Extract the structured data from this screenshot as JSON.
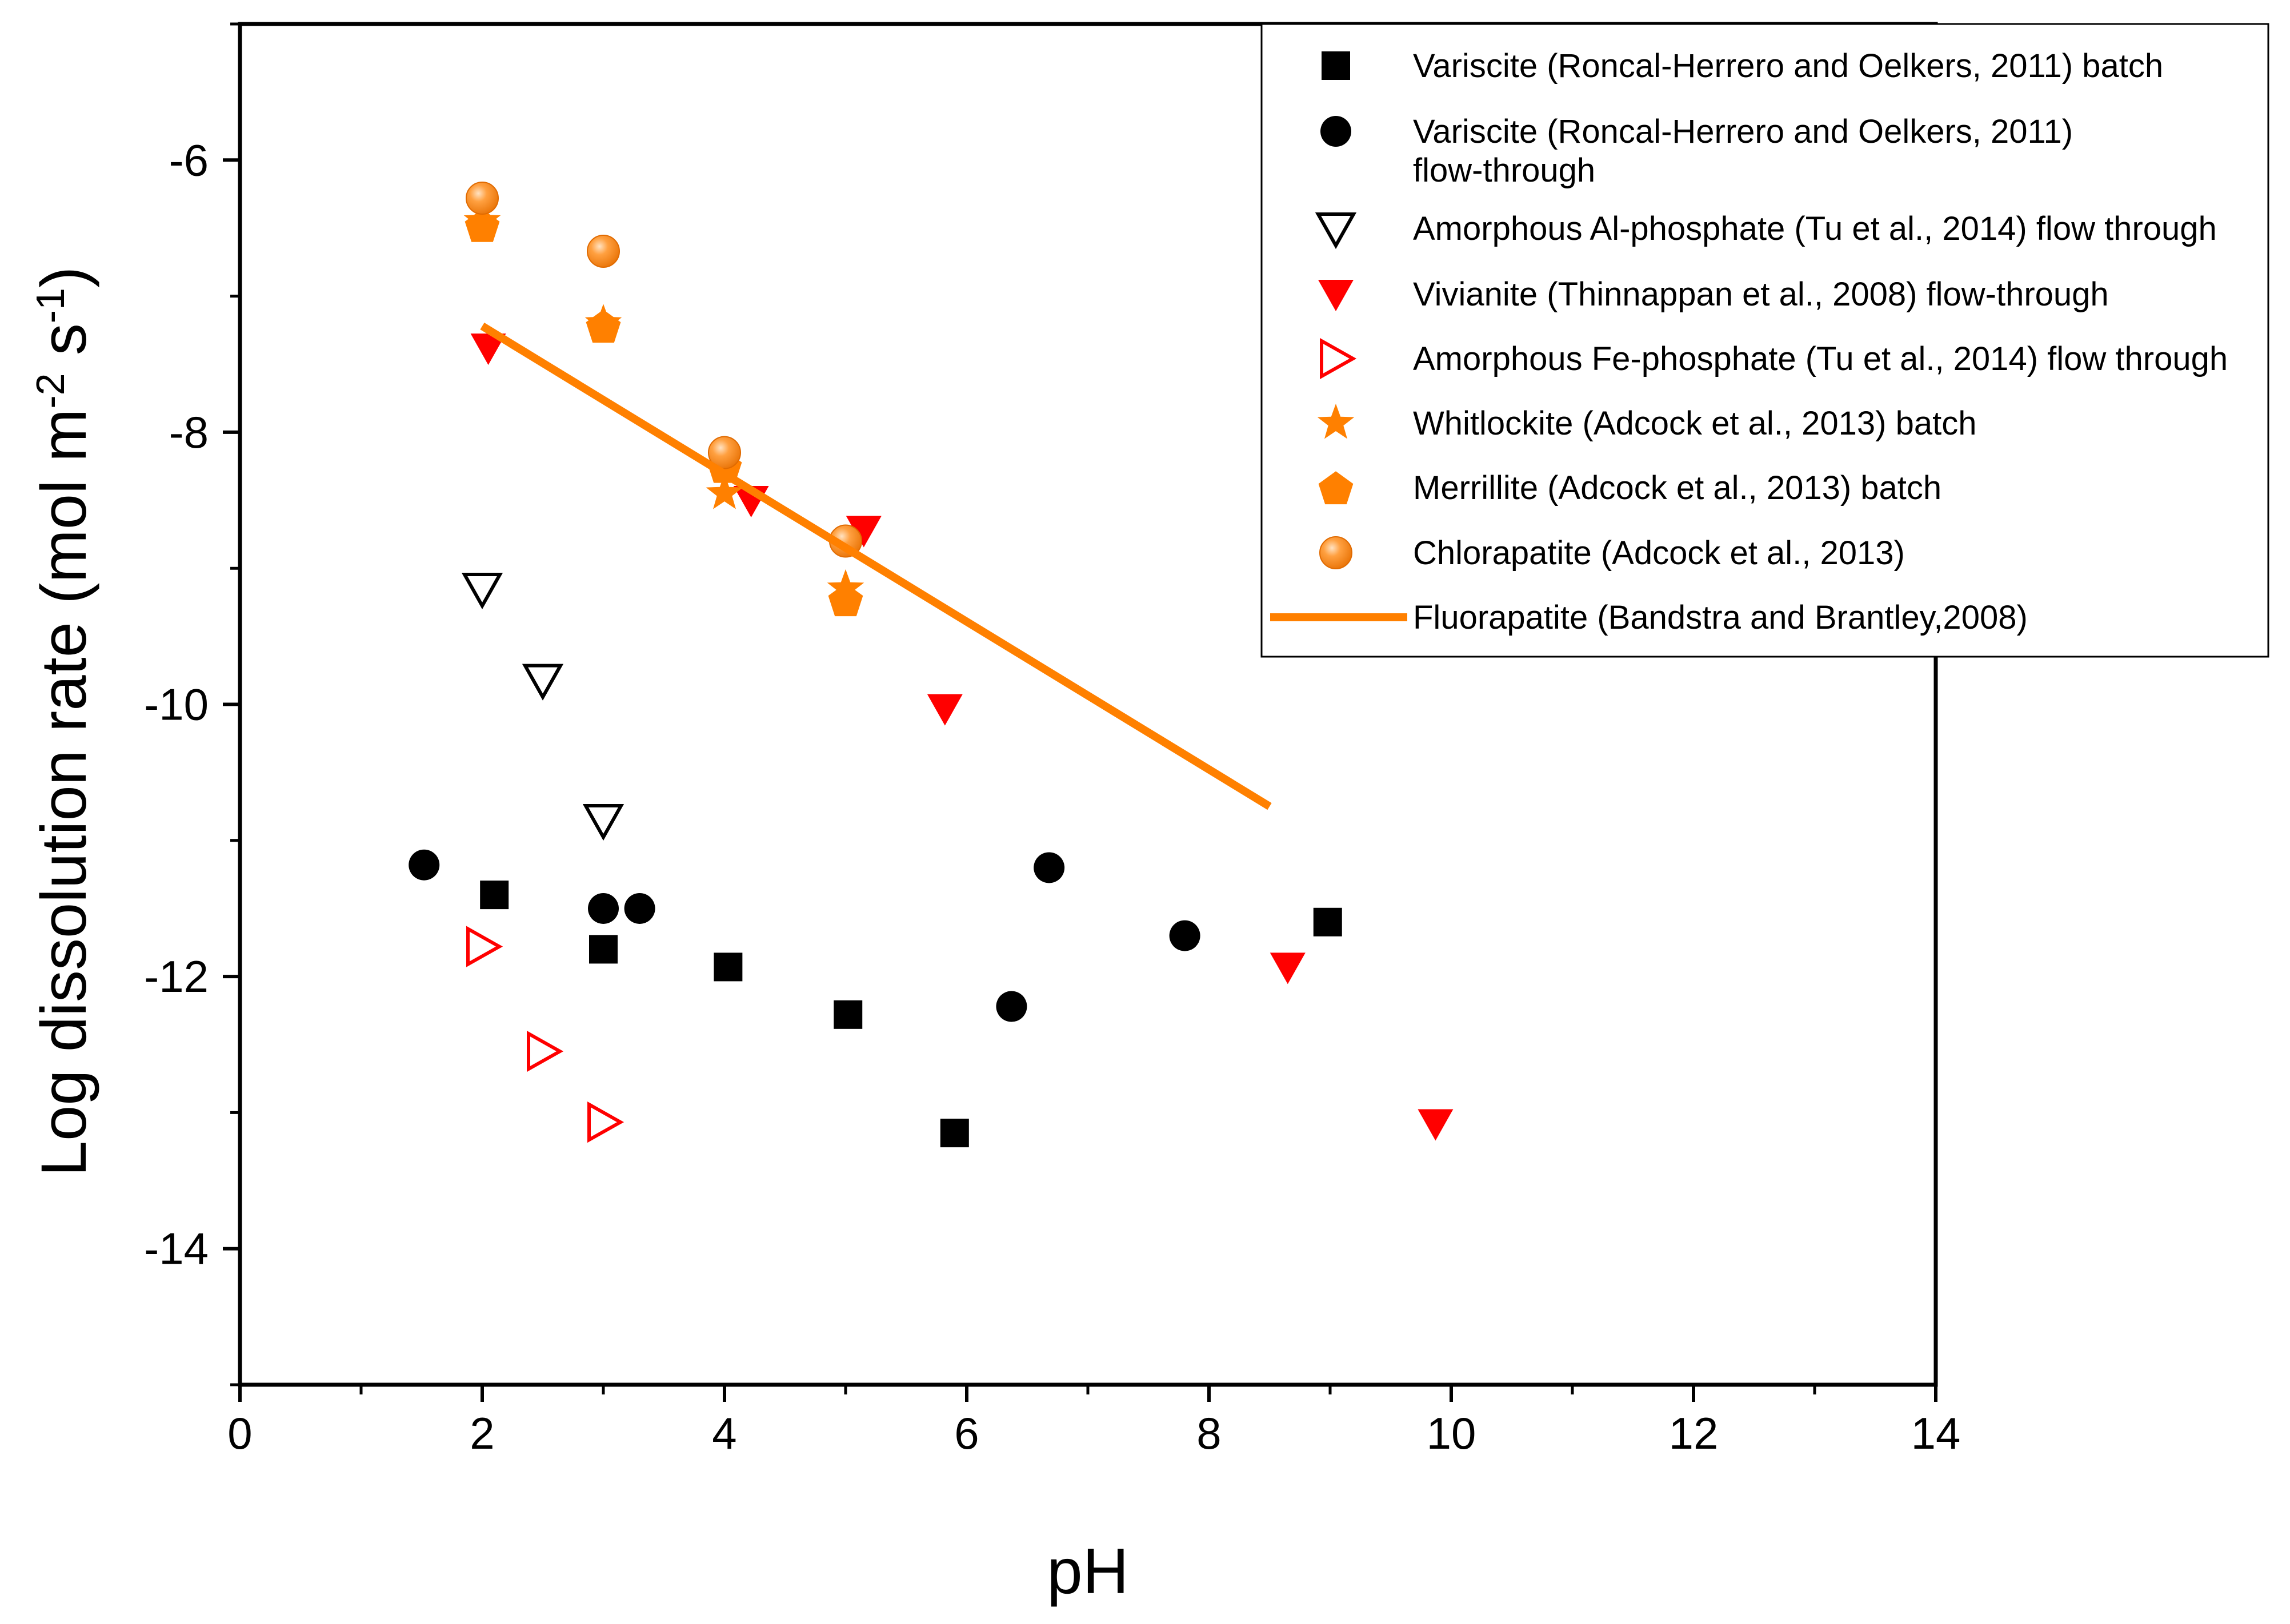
{
  "chart_data": {
    "type": "scatter",
    "title": "",
    "xlabel": "pH",
    "ylabel": {
      "prefix": "Log dissolution rate (mol m",
      "sup1": "-2",
      "mid": " s",
      "sup2": "-1",
      "suffix": ")"
    },
    "xlim": [
      0,
      14
    ],
    "ylim": [
      -15,
      -5
    ],
    "x_ticks": [
      0,
      2,
      4,
      6,
      8,
      10,
      12,
      14
    ],
    "x_tick_labels": [
      "0",
      "2",
      "4",
      "6",
      "8",
      "10",
      "12",
      "14"
    ],
    "y_ticks": [
      -6,
      -8,
      -10,
      -12,
      -14
    ],
    "y_tick_labels": [
      "-6",
      "-8",
      "-10",
      "-12",
      "-14"
    ],
    "grid": false,
    "legend_position": "top-right",
    "colors": {
      "black": "#000000",
      "red": "#ff0000",
      "orange": "#ff8000"
    },
    "series": [
      {
        "name": "Variscite (Roncal-Herrero and Oelkers, 2011) batch",
        "marker": "square",
        "color": "#000000",
        "filled": true,
        "points": [
          [
            2.1,
            -11.4
          ],
          [
            3.0,
            -11.8
          ],
          [
            4.03,
            -11.93
          ],
          [
            5.02,
            -12.28
          ],
          [
            5.9,
            -13.15
          ],
          [
            8.98,
            -11.6
          ]
        ]
      },
      {
        "name": "Variscite (Roncal-Herrero and Oelkers, 2011) flow-through",
        "legend_lines": [
          "Variscite (Roncal-Herrero and Oelkers, 2011)",
          "flow-through"
        ],
        "marker": "circle",
        "color": "#000000",
        "filled": true,
        "points": [
          [
            1.52,
            -11.18
          ],
          [
            3.0,
            -11.5
          ],
          [
            3.3,
            -11.5
          ],
          [
            6.37,
            -12.22
          ],
          [
            6.68,
            -11.2
          ],
          [
            7.8,
            -11.7
          ]
        ]
      },
      {
        "name": "Amorphous Al-phosphate (Tu et al., 2014) flow through",
        "marker": "triangle-down",
        "color": "#000000",
        "filled": false,
        "points": [
          [
            2.0,
            -9.15
          ],
          [
            2.5,
            -9.82
          ],
          [
            3.0,
            -10.85
          ]
        ]
      },
      {
        "name": "Vivianite (Thinnappan et al., 2008) flow-through",
        "marker": "triangle-down",
        "color": "#ff0000",
        "filled": true,
        "points": [
          [
            2.05,
            -7.38
          ],
          [
            4.22,
            -8.5
          ],
          [
            5.15,
            -8.72
          ],
          [
            5.82,
            -10.03
          ],
          [
            8.65,
            -11.93
          ],
          [
            9.87,
            -13.08
          ]
        ]
      },
      {
        "name": "Amorphous Fe-phosphate (Tu et al., 2014) flow through",
        "marker": "triangle-right",
        "color": "#ff0000",
        "filled": false,
        "points": [
          [
            2.0,
            -11.78
          ],
          [
            2.5,
            -12.55
          ],
          [
            3.0,
            -13.07
          ]
        ]
      },
      {
        "name": "Whitlockite (Adcock et al., 2013) batch",
        "marker": "star",
        "color": "#ff8000",
        "filled": true,
        "points": [
          [
            2.0,
            -6.45
          ],
          [
            3.0,
            -7.2
          ],
          [
            4.0,
            -8.45
          ],
          [
            5.0,
            -9.15
          ]
        ]
      },
      {
        "name": "Merrillite (Adcock et al., 2013) batch",
        "marker": "pentagon",
        "color": "#ff8000",
        "filled": true,
        "points": [
          [
            2.0,
            -6.48
          ],
          [
            3.0,
            -7.22
          ],
          [
            4.0,
            -8.25
          ],
          [
            5.0,
            -9.23
          ]
        ]
      },
      {
        "name": "Chlorapatite (Adcock et al., 2013)",
        "marker": "ball",
        "color": "#ff8000",
        "filled": true,
        "points": [
          [
            2.0,
            -6.28
          ],
          [
            3.0,
            -6.67
          ],
          [
            4.0,
            -8.15
          ],
          [
            5.0,
            -8.8
          ]
        ]
      },
      {
        "name": "Fluorapatite (Bandstra and Brantley,2008)",
        "marker": "line",
        "color": "#ff8000",
        "filled": true,
        "points": [
          [
            2.0,
            -7.22
          ],
          [
            8.5,
            -10.75
          ]
        ]
      }
    ]
  }
}
